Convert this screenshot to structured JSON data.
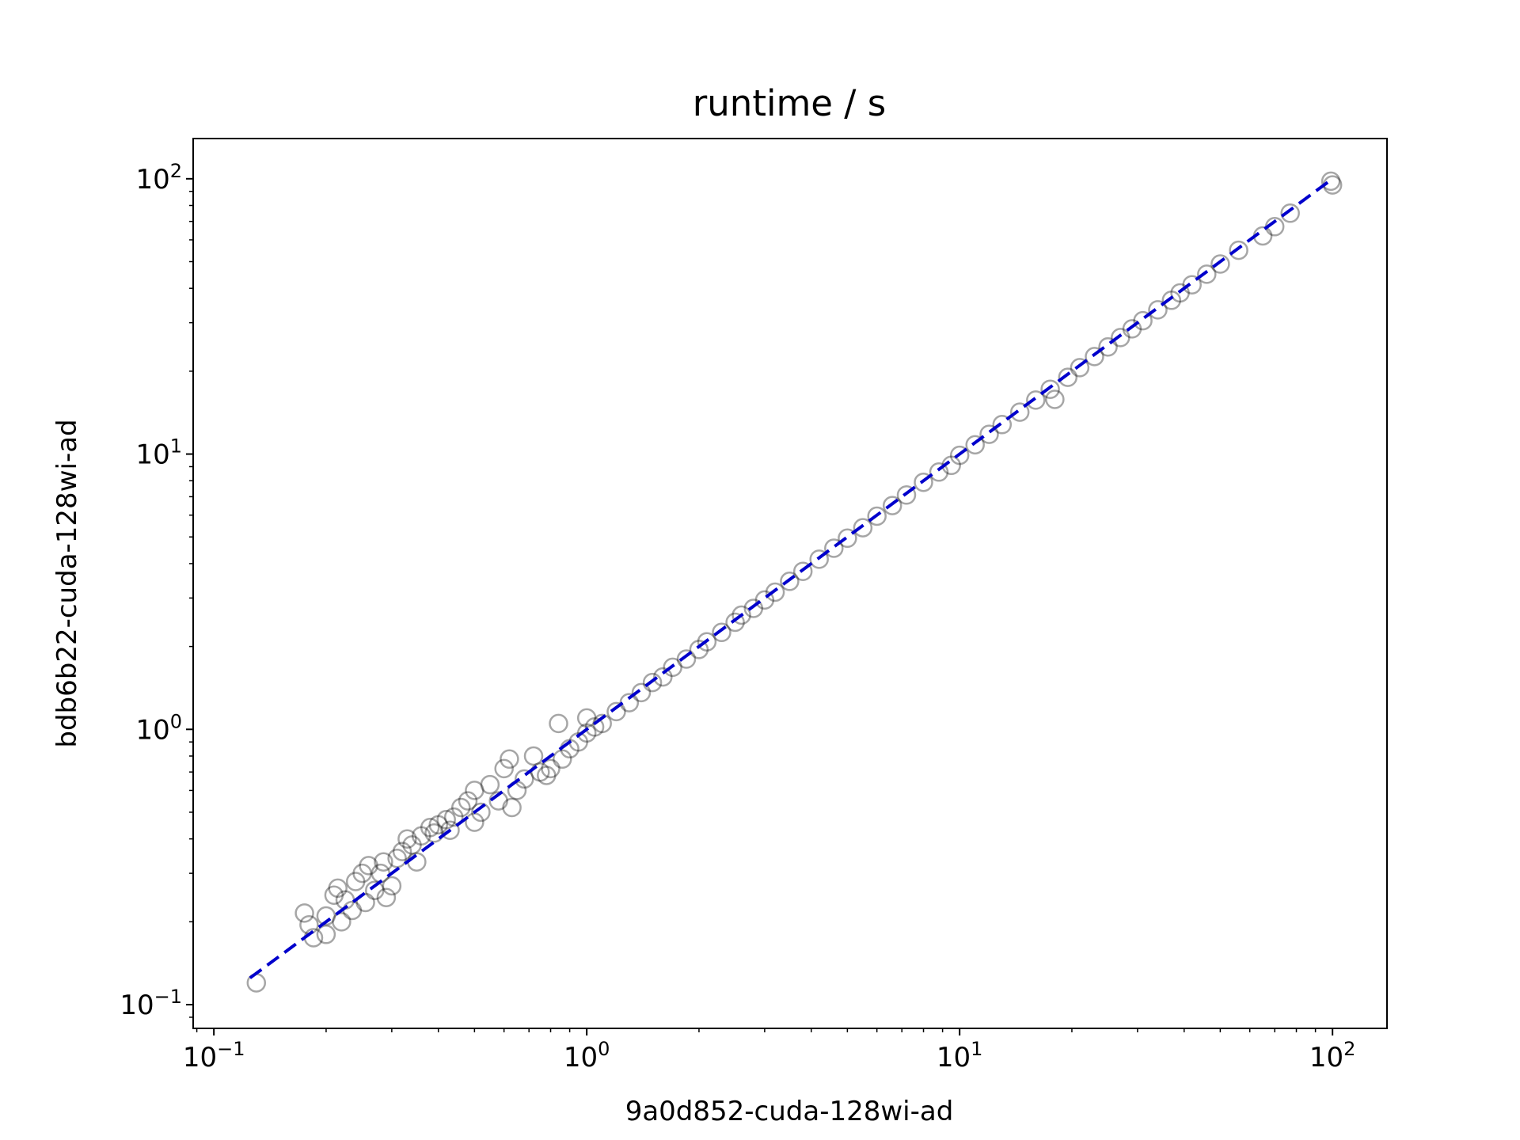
{
  "chart_data": {
    "type": "scatter",
    "title": "runtime / s",
    "xlabel": "9a0d852-cuda-128wi-ad",
    "ylabel": "bdb6b22-cuda-128wi-ad",
    "x_scale": "log",
    "y_scale": "log",
    "xlim": [
      0.088,
      140
    ],
    "ylim": [
      0.082,
      140
    ],
    "x_ticks": [
      {
        "value": 0.1,
        "base": "10",
        "exp": "−1"
      },
      {
        "value": 1,
        "base": "10",
        "exp": "0"
      },
      {
        "value": 10,
        "base": "10",
        "exp": "1"
      },
      {
        "value": 100,
        "base": "10",
        "exp": "2"
      }
    ],
    "y_ticks": [
      {
        "value": 0.1,
        "base": "10",
        "exp": "−1"
      },
      {
        "value": 1,
        "base": "10",
        "exp": "0"
      },
      {
        "value": 10,
        "base": "10",
        "exp": "1"
      },
      {
        "value": 100,
        "base": "10",
        "exp": "2"
      }
    ],
    "grid": false,
    "legend": "none",
    "marker": "hollow-circle",
    "marker_color": "#000000",
    "marker_opacity": 0.35,
    "reference_line": {
      "x": [
        0.125,
        100
      ],
      "y": [
        0.125,
        100
      ],
      "style": "dashed",
      "color": "#0000cc"
    },
    "points": [
      {
        "x": 0.13,
        "y": 0.12
      },
      {
        "x": 0.175,
        "y": 0.215
      },
      {
        "x": 0.18,
        "y": 0.195
      },
      {
        "x": 0.185,
        "y": 0.175
      },
      {
        "x": 0.2,
        "y": 0.18
      },
      {
        "x": 0.2,
        "y": 0.21
      },
      {
        "x": 0.21,
        "y": 0.25
      },
      {
        "x": 0.215,
        "y": 0.265
      },
      {
        "x": 0.22,
        "y": 0.2
      },
      {
        "x": 0.225,
        "y": 0.24
      },
      {
        "x": 0.235,
        "y": 0.22
      },
      {
        "x": 0.24,
        "y": 0.28
      },
      {
        "x": 0.25,
        "y": 0.3
      },
      {
        "x": 0.255,
        "y": 0.235
      },
      {
        "x": 0.26,
        "y": 0.32
      },
      {
        "x": 0.27,
        "y": 0.26
      },
      {
        "x": 0.28,
        "y": 0.3
      },
      {
        "x": 0.285,
        "y": 0.33
      },
      {
        "x": 0.29,
        "y": 0.245
      },
      {
        "x": 0.3,
        "y": 0.27
      },
      {
        "x": 0.31,
        "y": 0.34
      },
      {
        "x": 0.32,
        "y": 0.36
      },
      {
        "x": 0.33,
        "y": 0.4
      },
      {
        "x": 0.34,
        "y": 0.38
      },
      {
        "x": 0.35,
        "y": 0.33
      },
      {
        "x": 0.36,
        "y": 0.41
      },
      {
        "x": 0.38,
        "y": 0.44
      },
      {
        "x": 0.39,
        "y": 0.42
      },
      {
        "x": 0.4,
        "y": 0.45
      },
      {
        "x": 0.42,
        "y": 0.47
      },
      {
        "x": 0.43,
        "y": 0.43
      },
      {
        "x": 0.44,
        "y": 0.48
      },
      {
        "x": 0.46,
        "y": 0.52
      },
      {
        "x": 0.48,
        "y": 0.55
      },
      {
        "x": 0.5,
        "y": 0.46
      },
      {
        "x": 0.5,
        "y": 0.6
      },
      {
        "x": 0.52,
        "y": 0.5
      },
      {
        "x": 0.55,
        "y": 0.63
      },
      {
        "x": 0.58,
        "y": 0.55
      },
      {
        "x": 0.6,
        "y": 0.72
      },
      {
        "x": 0.62,
        "y": 0.78
      },
      {
        "x": 0.63,
        "y": 0.52
      },
      {
        "x": 0.65,
        "y": 0.6
      },
      {
        "x": 0.68,
        "y": 0.66
      },
      {
        "x": 0.72,
        "y": 0.8
      },
      {
        "x": 0.75,
        "y": 0.7
      },
      {
        "x": 0.78,
        "y": 0.68
      },
      {
        "x": 0.8,
        "y": 0.72
      },
      {
        "x": 0.84,
        "y": 1.05
      },
      {
        "x": 0.86,
        "y": 0.78
      },
      {
        "x": 0.9,
        "y": 0.85
      },
      {
        "x": 0.95,
        "y": 0.9
      },
      {
        "x": 1.0,
        "y": 0.97
      },
      {
        "x": 1.0,
        "y": 1.1
      },
      {
        "x": 1.05,
        "y": 1.02
      },
      {
        "x": 1.1,
        "y": 1.05
      },
      {
        "x": 1.2,
        "y": 1.16
      },
      {
        "x": 1.3,
        "y": 1.25
      },
      {
        "x": 1.4,
        "y": 1.36
      },
      {
        "x": 1.5,
        "y": 1.48
      },
      {
        "x": 1.6,
        "y": 1.55
      },
      {
        "x": 1.7,
        "y": 1.68
      },
      {
        "x": 1.85,
        "y": 1.8
      },
      {
        "x": 2.0,
        "y": 1.95
      },
      {
        "x": 2.1,
        "y": 2.08
      },
      {
        "x": 2.3,
        "y": 2.25
      },
      {
        "x": 2.5,
        "y": 2.45
      },
      {
        "x": 2.6,
        "y": 2.6
      },
      {
        "x": 2.8,
        "y": 2.75
      },
      {
        "x": 3.0,
        "y": 2.95
      },
      {
        "x": 3.2,
        "y": 3.15
      },
      {
        "x": 3.5,
        "y": 3.45
      },
      {
        "x": 3.8,
        "y": 3.75
      },
      {
        "x": 4.2,
        "y": 4.15
      },
      {
        "x": 4.6,
        "y": 4.55
      },
      {
        "x": 5.0,
        "y": 4.95
      },
      {
        "x": 5.5,
        "y": 5.4
      },
      {
        "x": 6.0,
        "y": 5.95
      },
      {
        "x": 6.6,
        "y": 6.5
      },
      {
        "x": 7.2,
        "y": 7.1
      },
      {
        "x": 8.0,
        "y": 7.9
      },
      {
        "x": 8.8,
        "y": 8.6
      },
      {
        "x": 9.5,
        "y": 9.1
      },
      {
        "x": 10.0,
        "y": 9.9
      },
      {
        "x": 11.0,
        "y": 10.8
      },
      {
        "x": 12.0,
        "y": 11.8
      },
      {
        "x": 13.0,
        "y": 12.8
      },
      {
        "x": 14.5,
        "y": 14.2
      },
      {
        "x": 16.0,
        "y": 15.7
      },
      {
        "x": 17.5,
        "y": 17.2
      },
      {
        "x": 18.0,
        "y": 15.8
      },
      {
        "x": 19.5,
        "y": 19.0
      },
      {
        "x": 21.0,
        "y": 20.6
      },
      {
        "x": 23.0,
        "y": 22.6
      },
      {
        "x": 25.0,
        "y": 24.5
      },
      {
        "x": 27.0,
        "y": 26.5
      },
      {
        "x": 29.0,
        "y": 28.5
      },
      {
        "x": 31.0,
        "y": 30.5
      },
      {
        "x": 34.0,
        "y": 33.4
      },
      {
        "x": 37.0,
        "y": 36.2
      },
      {
        "x": 39.0,
        "y": 38.5
      },
      {
        "x": 42.0,
        "y": 41.2
      },
      {
        "x": 46.0,
        "y": 45.0
      },
      {
        "x": 50.0,
        "y": 49.0
      },
      {
        "x": 56.0,
        "y": 55.0
      },
      {
        "x": 65.0,
        "y": 62.0
      },
      {
        "x": 70.0,
        "y": 67.0
      },
      {
        "x": 77.0,
        "y": 75.0
      },
      {
        "x": 99.0,
        "y": 98.0
      },
      {
        "x": 100.0,
        "y": 95.0
      }
    ]
  }
}
